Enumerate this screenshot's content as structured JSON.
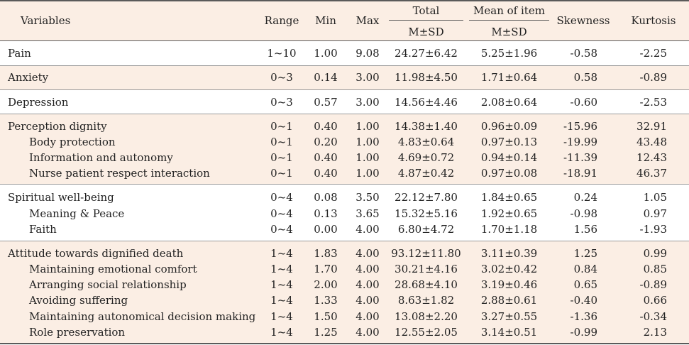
{
  "header": {
    "variables": "Variables",
    "range": "Range",
    "min": "Min",
    "max": "Max",
    "total": "Total",
    "mean_of_item": "Mean of item",
    "total_sub": "M±SD",
    "mean_sub": "M±SD",
    "skewness": "Skewness",
    "kurtosis": "Kurtosis"
  },
  "rows": [
    {
      "label": "Pain",
      "indent": false,
      "range": "1~10",
      "min": "1.00",
      "max": "9.08",
      "total": "24.27±6.42",
      "mean": "5.25±1.96",
      "skew": "-0.58",
      "kurt": "-2.25"
    },
    {
      "label": "Anxiety",
      "indent": false,
      "range": "0~3",
      "min": "0.14",
      "max": "3.00",
      "total": "11.98±4.50",
      "mean": "1.71±0.64",
      "skew": "0.58",
      "kurt": "-0.89"
    },
    {
      "label": "Depression",
      "indent": false,
      "range": "0~3",
      "min": "0.57",
      "max": "3.00",
      "total": "14.56±4.46",
      "mean": "2.08±0.64",
      "skew": "-0.60",
      "kurt": "-2.53"
    },
    {
      "label": "Perception dignity",
      "indent": false,
      "range": "0~1",
      "min": "0.40",
      "max": "1.00",
      "total": "14.38±1.40",
      "mean": "0.96±0.09",
      "skew": "-15.96",
      "kurt": "32.91"
    },
    {
      "label": "Body protection",
      "indent": true,
      "range": "0~1",
      "min": "0.20",
      "max": "1.00",
      "total": "4.83±0.64",
      "mean": "0.97±0.13",
      "skew": "-19.99",
      "kurt": "43.48"
    },
    {
      "label": "Information and autonomy",
      "indent": true,
      "range": "0~1",
      "min": "0.40",
      "max": "1.00",
      "total": "4.69±0.72",
      "mean": "0.94±0.14",
      "skew": "-11.39",
      "kurt": "12.43"
    },
    {
      "label": "Nurse patient respect interaction",
      "indent": true,
      "range": "0~1",
      "min": "0.40",
      "max": "1.00",
      "total": "4.87±0.42",
      "mean": "0.97±0.08",
      "skew": "-18.91",
      "kurt": "46.37"
    },
    {
      "label": "Spiritual well-being",
      "indent": false,
      "range": "0~4",
      "min": "0.08",
      "max": "3.50",
      "total": "22.12±7.80",
      "mean": "1.84±0.65",
      "skew": "0.24",
      "kurt": "1.05"
    },
    {
      "label": "Meaning & Peace",
      "indent": true,
      "range": "0~4",
      "min": "0.13",
      "max": "3.65",
      "total": "15.32±5.16",
      "mean": "1.92±0.65",
      "skew": "-0.98",
      "kurt": "0.97"
    },
    {
      "label": "Faith",
      "indent": true,
      "range": "0~4",
      "min": "0.00",
      "max": "4.00",
      "total": "6.80±4.72",
      "mean": "1.70±1.18",
      "skew": "1.56",
      "kurt": "-1.93"
    },
    {
      "label": "Attitude towards dignified death",
      "indent": false,
      "range": "1~4",
      "min": "1.83",
      "max": "4.00",
      "total": "93.12±11.80",
      "mean": "3.11±0.39",
      "skew": "1.25",
      "kurt": "0.99"
    },
    {
      "label": "Maintaining emotional comfort",
      "indent": true,
      "range": "1~4",
      "min": "1.70",
      "max": "4.00",
      "total": "30.21±4.16",
      "mean": "3.02±0.42",
      "skew": "0.84",
      "kurt": "0.85"
    },
    {
      "label": "Arranging social relationship",
      "indent": true,
      "range": "1~4",
      "min": "2.00",
      "max": "4.00",
      "total": "28.68±4.10",
      "mean": "3.19±0.46",
      "skew": "0.65",
      "kurt": "-0.89"
    },
    {
      "label": "Avoiding suffering",
      "indent": true,
      "range": "1~4",
      "min": "1.33",
      "max": "4.00",
      "total": "8.63±1.82",
      "mean": "2.88±0.61",
      "skew": "-0.40",
      "kurt": "0.66"
    },
    {
      "label": "Maintaining autonomical decision making",
      "indent": true,
      "range": "1~4",
      "min": "1.50",
      "max": "4.00",
      "total": "13.08±2.20",
      "mean": "3.27±0.55",
      "skew": "-1.36",
      "kurt": "-0.34"
    },
    {
      "label": "Role preservation",
      "indent": true,
      "range": "1~4",
      "min": "1.25",
      "max": "4.00",
      "total": "12.55±2.05",
      "mean": "3.14±0.51",
      "skew": "-0.99",
      "kurt": "2.13"
    }
  ],
  "colors": {
    "band": "#fbeee4",
    "rule": "#5a5a5a"
  }
}
